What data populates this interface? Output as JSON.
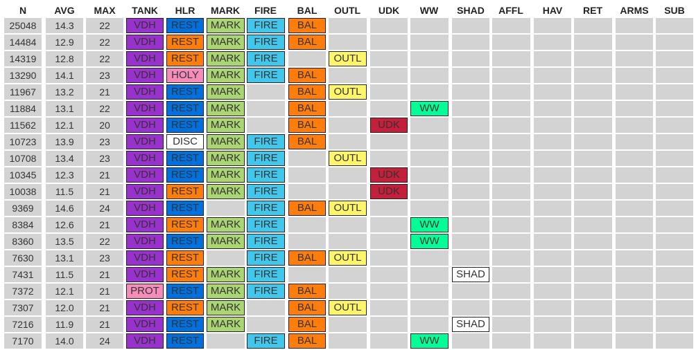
{
  "colors": {
    "row_background": "#d3d3d3",
    "VDH": "#9932cc",
    "PROT": "#f58cba",
    "REST": "#ff7d0a",
    "REST_ALT": "#0070de",
    "HOLY": "#f58cba",
    "DISC": "#ffffff",
    "MARK": "#abd473",
    "FIRE": "#40c7eb",
    "BAL": "#ff7d0a",
    "OUTL": "#fff569",
    "UDK": "#c41f3b",
    "WW": "#00ff96",
    "SHAD": "#ffffff"
  },
  "table": {
    "headers": [
      "N",
      "AVG",
      "MAX",
      "TANK",
      "HLR",
      "MARK",
      "FIRE",
      "BAL",
      "OUTL",
      "UDK",
      "WW",
      "SHAD",
      "AFFL",
      "HAV",
      "RET",
      "ARMS",
      "SUB"
    ],
    "rows": [
      {
        "n": "25048",
        "avg": "14.3",
        "max": "22",
        "tags": {
          "TANK": "VDH",
          "HLR": "REST",
          "HLR_c": "REST_ALT",
          "MARK": "MARK",
          "FIRE": "FIRE",
          "BAL": "BAL"
        }
      },
      {
        "n": "14484",
        "avg": "12.9",
        "max": "22",
        "tags": {
          "TANK": "VDH",
          "HLR": "REST",
          "MARK": "MARK",
          "FIRE": "FIRE",
          "BAL": "BAL"
        }
      },
      {
        "n": "14319",
        "avg": "12.8",
        "max": "22",
        "tags": {
          "TANK": "VDH",
          "HLR": "REST",
          "MARK": "MARK",
          "FIRE": "FIRE",
          "OUTL": "OUTL"
        }
      },
      {
        "n": "13290",
        "avg": "14.1",
        "max": "23",
        "tags": {
          "TANK": "VDH",
          "HLR": "HOLY",
          "MARK": "MARK",
          "FIRE": "FIRE",
          "BAL": "BAL"
        }
      },
      {
        "n": "11967",
        "avg": "13.2",
        "max": "21",
        "tags": {
          "TANK": "VDH",
          "HLR": "REST",
          "HLR_c": "REST_ALT",
          "MARK": "MARK",
          "BAL": "BAL",
          "OUTL": "OUTL"
        }
      },
      {
        "n": "11884",
        "avg": "13.1",
        "max": "22",
        "tags": {
          "TANK": "VDH",
          "HLR": "REST",
          "HLR_c": "REST_ALT",
          "MARK": "MARK",
          "BAL": "BAL",
          "WW": "WW"
        }
      },
      {
        "n": "11562",
        "avg": "12.1",
        "max": "20",
        "tags": {
          "TANK": "VDH",
          "HLR": "REST",
          "HLR_c": "REST_ALT",
          "MARK": "MARK",
          "BAL": "BAL",
          "UDK": "UDK"
        }
      },
      {
        "n": "10723",
        "avg": "13.9",
        "max": "23",
        "tags": {
          "TANK": "VDH",
          "HLR": "DISC",
          "MARK": "MARK",
          "FIRE": "FIRE",
          "BAL": "BAL"
        }
      },
      {
        "n": "10708",
        "avg": "13.4",
        "max": "23",
        "tags": {
          "TANK": "VDH",
          "HLR": "REST",
          "HLR_c": "REST_ALT",
          "MARK": "MARK",
          "FIRE": "FIRE",
          "OUTL": "OUTL"
        }
      },
      {
        "n": "10345",
        "avg": "12.3",
        "max": "21",
        "tags": {
          "TANK": "VDH",
          "HLR": "REST",
          "HLR_c": "REST_ALT",
          "MARK": "MARK",
          "FIRE": "FIRE",
          "UDK": "UDK"
        }
      },
      {
        "n": "10038",
        "avg": "11.5",
        "max": "21",
        "tags": {
          "TANK": "VDH",
          "HLR": "REST",
          "MARK": "MARK",
          "FIRE": "FIRE",
          "UDK": "UDK"
        }
      },
      {
        "n": "9369",
        "avg": "14.6",
        "max": "24",
        "tags": {
          "TANK": "VDH",
          "HLR": "REST",
          "HLR_c": "REST_ALT",
          "FIRE": "FIRE",
          "BAL": "BAL",
          "OUTL": "OUTL"
        }
      },
      {
        "n": "8384",
        "avg": "12.6",
        "max": "21",
        "tags": {
          "TANK": "VDH",
          "HLR": "REST",
          "MARK": "MARK",
          "FIRE": "FIRE",
          "WW": "WW"
        }
      },
      {
        "n": "8360",
        "avg": "13.5",
        "max": "22",
        "tags": {
          "TANK": "VDH",
          "HLR": "REST",
          "HLR_c": "REST_ALT",
          "MARK": "MARK",
          "FIRE": "FIRE",
          "WW": "WW"
        }
      },
      {
        "n": "7630",
        "avg": "13.1",
        "max": "23",
        "tags": {
          "TANK": "VDH",
          "HLR": "REST",
          "FIRE": "FIRE",
          "BAL": "BAL",
          "OUTL": "OUTL"
        }
      },
      {
        "n": "7431",
        "avg": "11.5",
        "max": "21",
        "tags": {
          "TANK": "VDH",
          "HLR": "REST",
          "MARK": "MARK",
          "FIRE": "FIRE",
          "SHAD": "SHAD"
        }
      },
      {
        "n": "7372",
        "avg": "12.1",
        "max": "21",
        "tags": {
          "TANK": "PROT",
          "HLR": "REST",
          "HLR_c": "REST_ALT",
          "MARK": "MARK",
          "FIRE": "FIRE",
          "BAL": "BAL"
        }
      },
      {
        "n": "7307",
        "avg": "12.0",
        "max": "21",
        "tags": {
          "TANK": "VDH",
          "HLR": "REST",
          "MARK": "MARK",
          "BAL": "BAL",
          "OUTL": "OUTL"
        }
      },
      {
        "n": "7216",
        "avg": "11.9",
        "max": "21",
        "tags": {
          "TANK": "VDH",
          "HLR": "REST",
          "HLR_c": "REST_ALT",
          "MARK": "MARK",
          "BAL": "BAL",
          "SHAD": "SHAD"
        }
      },
      {
        "n": "7170",
        "avg": "14.0",
        "max": "24",
        "tags": {
          "TANK": "VDH",
          "HLR": "REST",
          "HLR_c": "REST_ALT",
          "FIRE": "FIRE",
          "BAL": "BAL",
          "WW": "WW"
        }
      }
    ]
  }
}
